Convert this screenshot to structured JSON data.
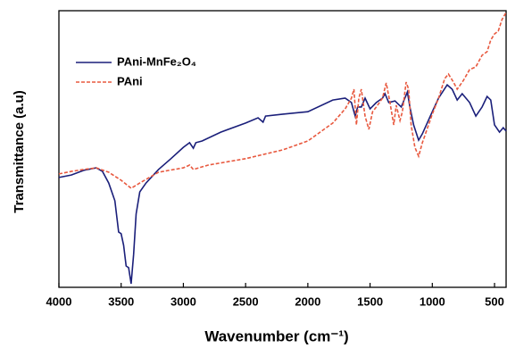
{
  "chart_data": {
    "type": "line",
    "x_label": "Wavenumber (cm⁻¹)",
    "y_label": "Transmittance (a.u)",
    "xlim": [
      4000,
      407
    ],
    "xticks": [
      4000,
      3500,
      3000,
      2500,
      2000,
      1500,
      1000,
      500
    ],
    "ylim": [
      0,
      100
    ],
    "series": [
      {
        "name": "PAni-MnFe₂O₄",
        "color": "#1a1f7a",
        "dash": "solid",
        "x": [
          4000,
          3900,
          3800,
          3700,
          3650,
          3600,
          3550,
          3520,
          3500,
          3480,
          3460,
          3440,
          3420,
          3400,
          3380,
          3350,
          3300,
          3200,
          3100,
          3000,
          2950,
          2920,
          2900,
          2850,
          2700,
          2500,
          2400,
          2360,
          2340,
          2200,
          2000,
          1800,
          1700,
          1650,
          1620,
          1600,
          1570,
          1540,
          1500,
          1450,
          1400,
          1380,
          1350,
          1300,
          1250,
          1220,
          1200,
          1180,
          1150,
          1110,
          1080,
          1000,
          950,
          880,
          840,
          800,
          760,
          700,
          650,
          600,
          560,
          530,
          500,
          460,
          430,
          407
        ],
        "values": [
          39.7,
          40.6,
          42.3,
          43.2,
          41.9,
          37.7,
          31.3,
          20,
          19.4,
          15.2,
          7.7,
          7.1,
          1.3,
          11.9,
          26.5,
          34.5,
          37.7,
          42.6,
          46.5,
          50.6,
          52.3,
          50.3,
          52.3,
          52.9,
          56.1,
          59.4,
          61.3,
          59.7,
          61.9,
          62.6,
          63.5,
          67.7,
          68.4,
          66.8,
          61.9,
          65.2,
          65.2,
          68.4,
          64.5,
          66.8,
          68.4,
          70,
          66.8,
          67.4,
          65.2,
          68.4,
          70.6,
          65.2,
          58.7,
          53.2,
          55.5,
          63.5,
          68.4,
          73.2,
          71.6,
          67.7,
          70,
          66.8,
          61.9,
          65.2,
          69,
          67.7,
          58.7,
          56.1,
          57.7,
          56.5
        ]
      },
      {
        "name": "PAni",
        "color": "#e8593f",
        "dash": "dashed",
        "x": [
          4000,
          3900,
          3800,
          3700,
          3600,
          3500,
          3420,
          3350,
          3200,
          3000,
          2950,
          2920,
          2800,
          2500,
          2200,
          2000,
          1800,
          1700,
          1650,
          1630,
          1610,
          1590,
          1570,
          1540,
          1510,
          1480,
          1450,
          1400,
          1370,
          1340,
          1310,
          1290,
          1260,
          1240,
          1210,
          1190,
          1170,
          1140,
          1110,
          1080,
          1000,
          950,
          900,
          870,
          830,
          800,
          750,
          700,
          650,
          600,
          560,
          530,
          500,
          470,
          440,
          407
        ],
        "values": [
          41,
          41.9,
          42.6,
          43.2,
          41.6,
          38.7,
          35.8,
          37.7,
          41.6,
          43.2,
          44.2,
          42.6,
          44.2,
          46.5,
          49.7,
          52.9,
          59.4,
          64.5,
          68.4,
          71.6,
          58.7,
          68.4,
          71.6,
          61.9,
          57.1,
          63.5,
          65.2,
          68.4,
          73.9,
          66.8,
          58.7,
          65.8,
          60.3,
          63.5,
          74.2,
          71.6,
          58.7,
          50.6,
          47.4,
          52.3,
          62.6,
          68.4,
          75.5,
          77.1,
          74.2,
          71.6,
          74.8,
          78.7,
          79.7,
          83.9,
          85.2,
          89.4,
          91.6,
          92.6,
          96.8,
          99.4
        ]
      }
    ]
  }
}
